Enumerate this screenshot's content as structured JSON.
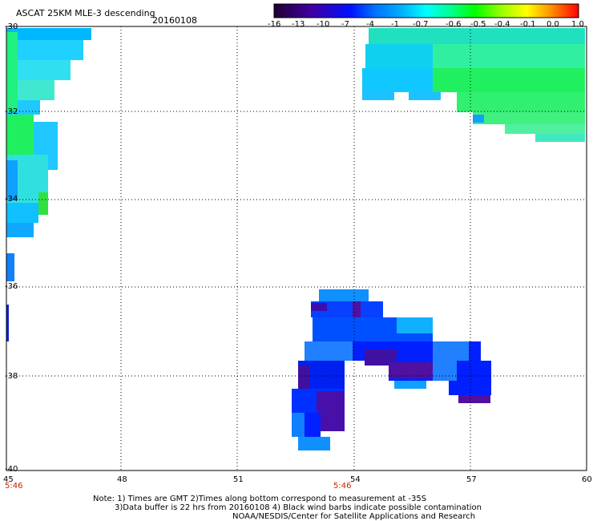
{
  "header": {
    "title": "ASCAT 25KM MLE-3 descending",
    "date": "20160108"
  },
  "colorbar": {
    "labels": [
      "-16",
      "-13",
      "-10",
      "-7",
      "-4",
      "-1",
      "-0.7",
      "-0.6",
      "-0.5",
      "-0.4",
      "-0.1",
      "0.0",
      "1.0"
    ],
    "colors": [
      "#200030",
      "#3a0090",
      "#0010ff",
      "#0060ff",
      "#00b0ff",
      "#00ffff",
      "#00ff80",
      "#00ff00",
      "#80ff00",
      "#ffff00",
      "#ffa000",
      "#ff4000",
      "#ff0000"
    ]
  },
  "map": {
    "x_labels": [
      "45",
      "48",
      "51",
      "54",
      "57",
      "60"
    ],
    "y_labels": [
      "-30",
      "-32",
      "-34",
      "-36",
      "-38",
      "-40"
    ],
    "time_labels": [
      "5:46",
      "5:46"
    ]
  },
  "notes": {
    "line1": "Note: 1) Times are GMT 2)Times along bottom correspond to measurement at -35S",
    "line2": "3)Data buffer is 22 hrs from 20160108 4) Black wind barbs indicate possible contamination",
    "line3": "NOAA/NESDIS/Center for Satellite Applications and Research"
  }
}
